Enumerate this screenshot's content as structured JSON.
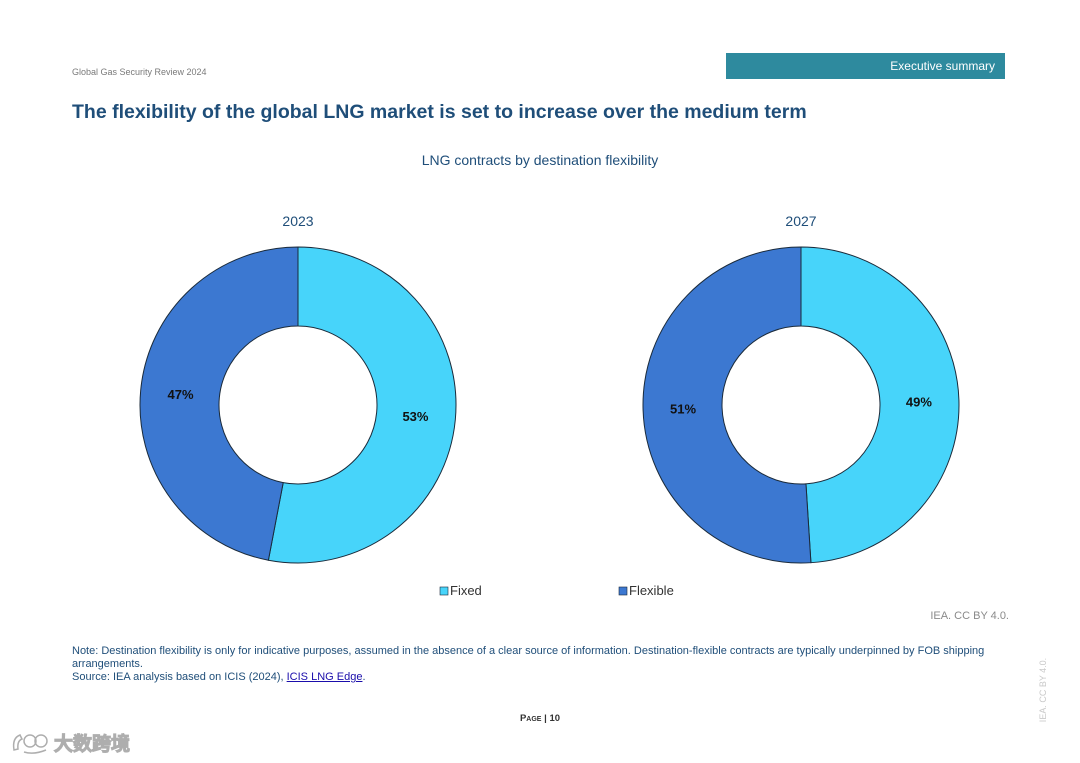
{
  "header": {
    "report_name": "Global Gas Security Review 2024",
    "section": "Executive summary"
  },
  "page_title": "The flexibility of the global LNG market is set to increase over the medium term",
  "chart_data": {
    "type": "pie",
    "title": "LNG contracts by destination flexibility",
    "legend_position": "bottom",
    "categories": [
      "Fixed",
      "Flexible"
    ],
    "colors": {
      "Fixed": "#47d4fa",
      "Flexible": "#3c78d1"
    },
    "charts": [
      {
        "label": "2023",
        "values": [
          53,
          47
        ],
        "value_labels": [
          "53%",
          "47%"
        ]
      },
      {
        "label": "2027",
        "values": [
          49,
          51
        ],
        "value_labels": [
          "49%",
          "51%"
        ]
      }
    ],
    "legend": [
      "Fixed",
      "Flexible"
    ]
  },
  "license": "IEA. CC BY 4.0.",
  "notes": {
    "note": "Note: Destination flexibility is only for indicative purposes, assumed in the absence of a clear source of information. Destination-flexible contracts are typically underpinned by FOB shipping arrangements.",
    "source_prefix": "Source: IEA analysis based on ICIS (2024), ",
    "source_link": "ICIS LNG Edge",
    "source_suffix": "."
  },
  "footer": {
    "page_label": "Page",
    "separator": "|",
    "page_number": "10"
  },
  "side_license": "IEA. CC BY 4.0.",
  "watermark": {
    "text": "大数跨境"
  }
}
